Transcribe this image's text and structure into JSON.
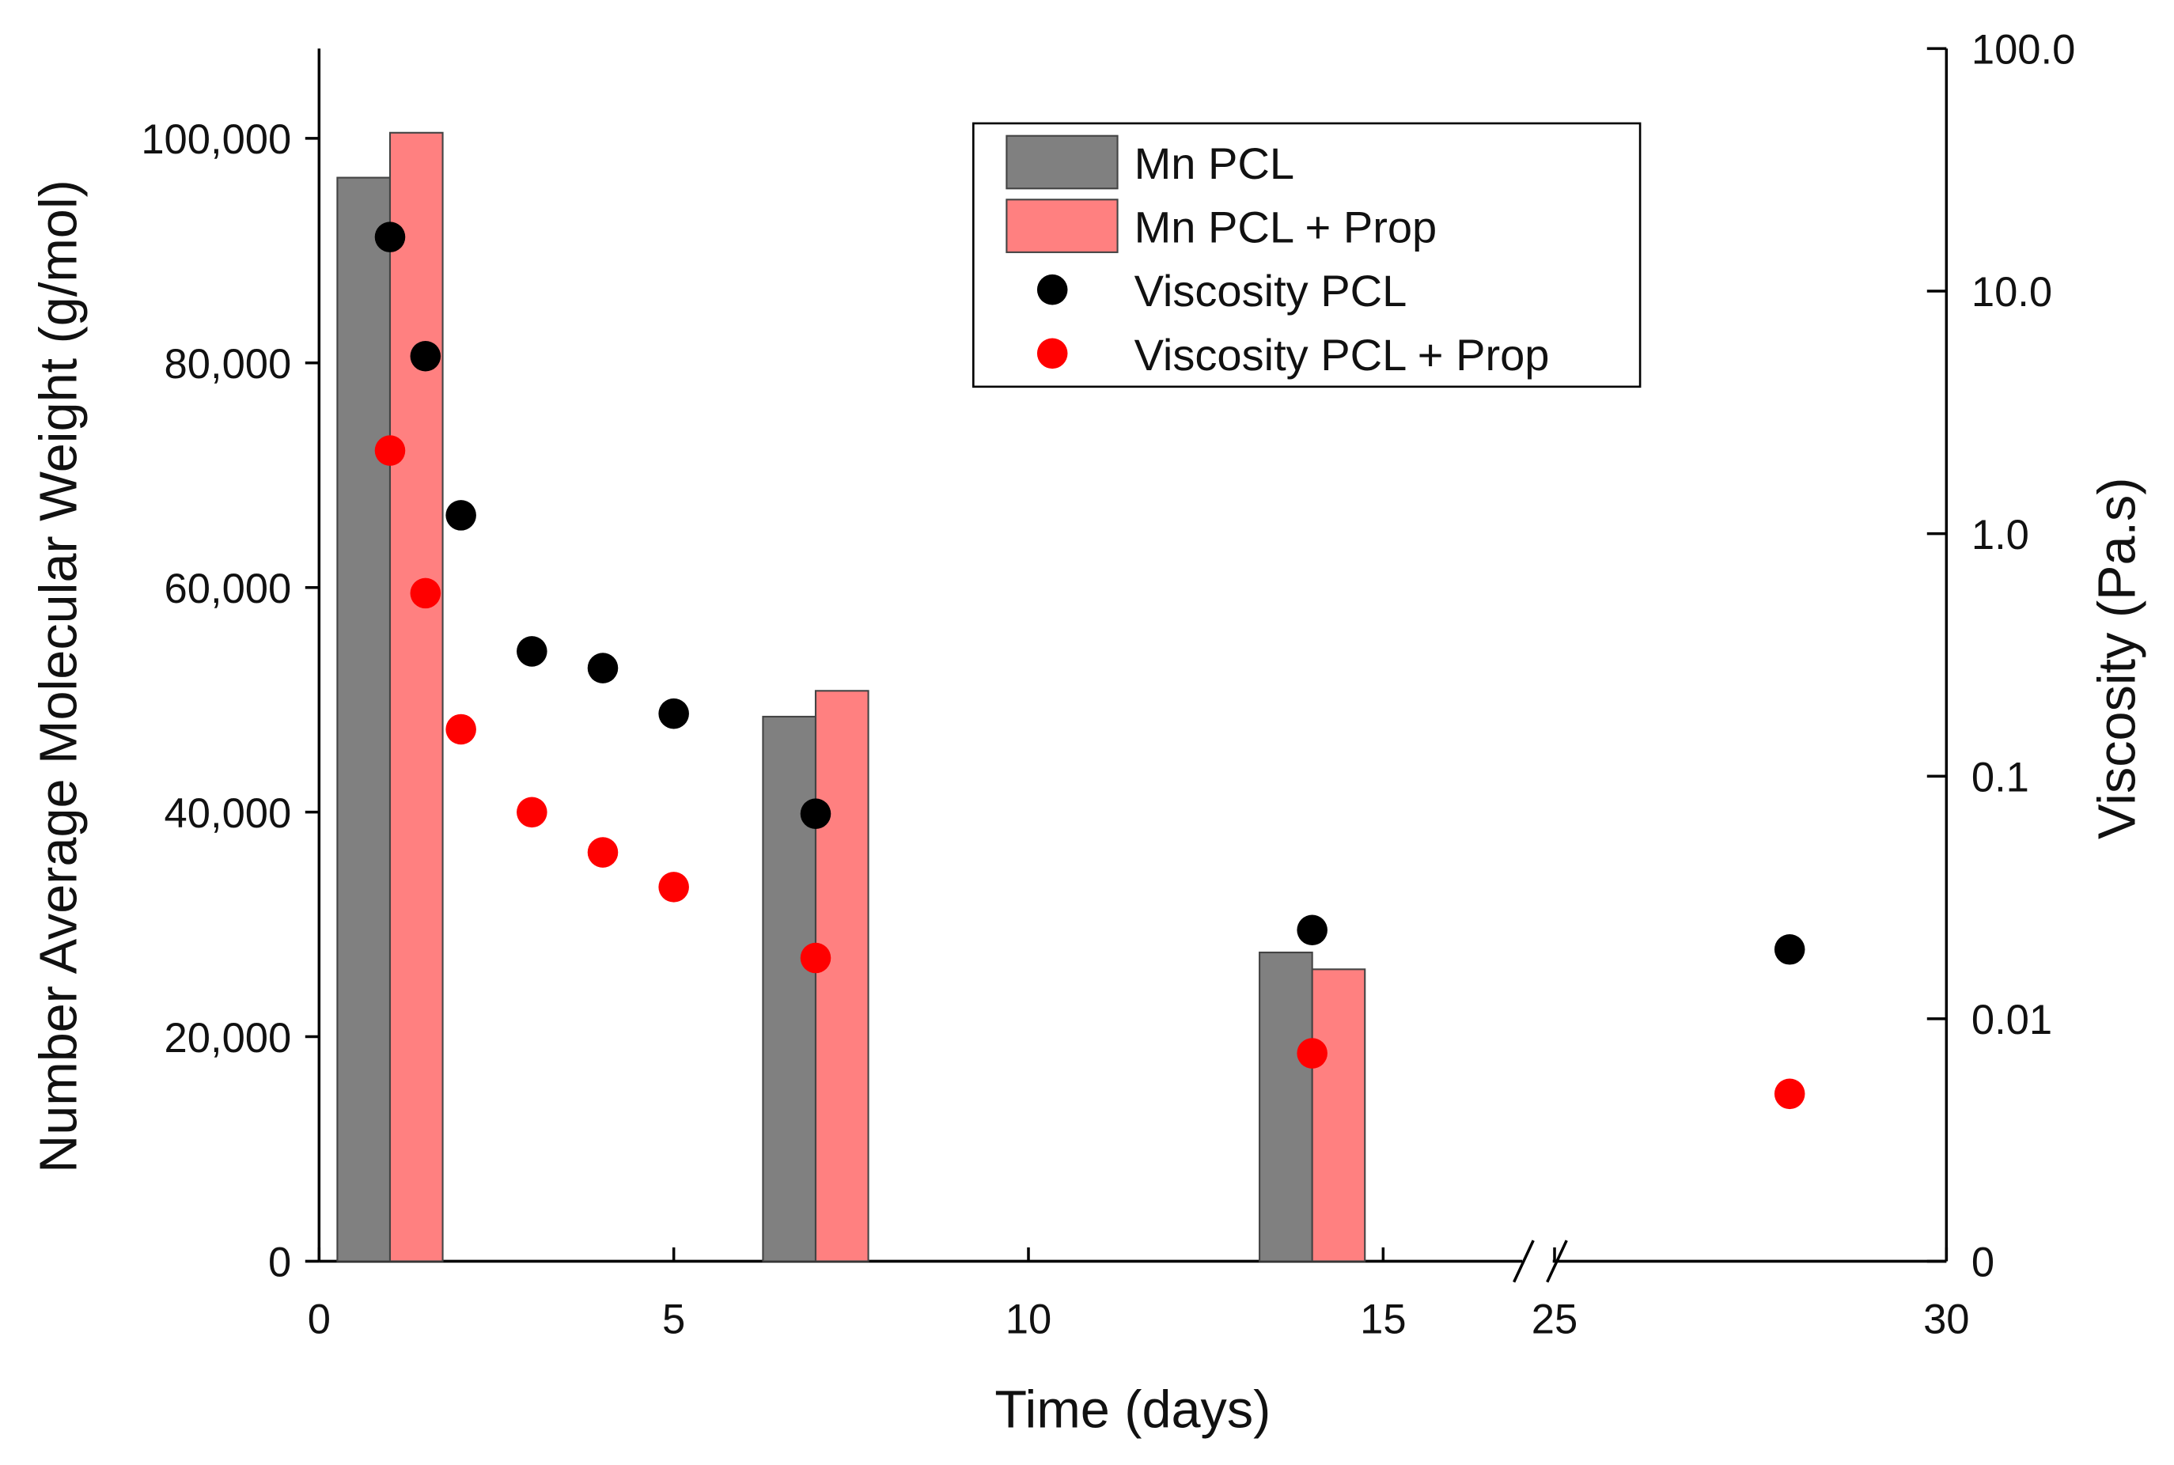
{
  "chart_data": {
    "type": "bar",
    "xlabel": "Time (days)",
    "ylabel": "Number Average Molecular Weight (g/mol)",
    "y2label": "Viscosity (Pa.s)",
    "xlim": [
      0,
      30
    ],
    "x_break": [
      17,
      24.8
    ],
    "xticks": [
      0,
      5,
      10,
      15,
      25,
      30
    ],
    "ylim": [
      0,
      108000
    ],
    "yticks": [
      0,
      {
        "value": 20000,
        "label": "20,000"
      },
      {
        "value": 40000,
        "label": "40,000"
      },
      {
        "value": 60000,
        "label": "60,000"
      },
      {
        "value": 80000,
        "label": "80,000"
      },
      {
        "value": 100000,
        "label": "100,000"
      }
    ],
    "y2lim": [
      0.001,
      100
    ],
    "y2_log": true,
    "y2ticks": [
      {
        "value": 0.001,
        "label": "0"
      },
      0.01,
      0.1,
      {
        "value": 1,
        "label": "1.0"
      },
      {
        "value": 10,
        "label": "10.0"
      },
      {
        "value": 100,
        "label": "100.0"
      }
    ],
    "legend": "upper right",
    "series": [
      {
        "name": "Mn PCL",
        "type": "bar",
        "color": "#808080",
        "x": [
          1,
          7,
          14
        ],
        "values": [
          96500,
          48500,
          27500
        ]
      },
      {
        "name": "Mn PCL + Prop",
        "type": "bar",
        "color": "#ff8080",
        "x": [
          1,
          7,
          14
        ],
        "values": [
          100500,
          50800,
          26000
        ]
      },
      {
        "name": "Viscosity PCL",
        "type": "scatter",
        "axis": "y2",
        "color": "#000000",
        "x": [
          1,
          1.5,
          2,
          3,
          4,
          5,
          7,
          14,
          28
        ],
        "values": [
          16.7,
          5.39,
          1.19,
          0.327,
          0.279,
          0.181,
          0.07,
          0.0232,
          0.0193
        ]
      },
      {
        "name": "Viscosity PCL + Prop",
        "type": "scatter",
        "axis": "y2",
        "color": "#ff0000",
        "x": [
          1,
          1.5,
          2,
          3,
          4,
          5,
          7,
          14,
          28
        ],
        "values": [
          2.2,
          0.568,
          0.156,
          0.071,
          0.0485,
          0.0349,
          0.0178,
          0.0072,
          0.0049
        ]
      }
    ]
  }
}
